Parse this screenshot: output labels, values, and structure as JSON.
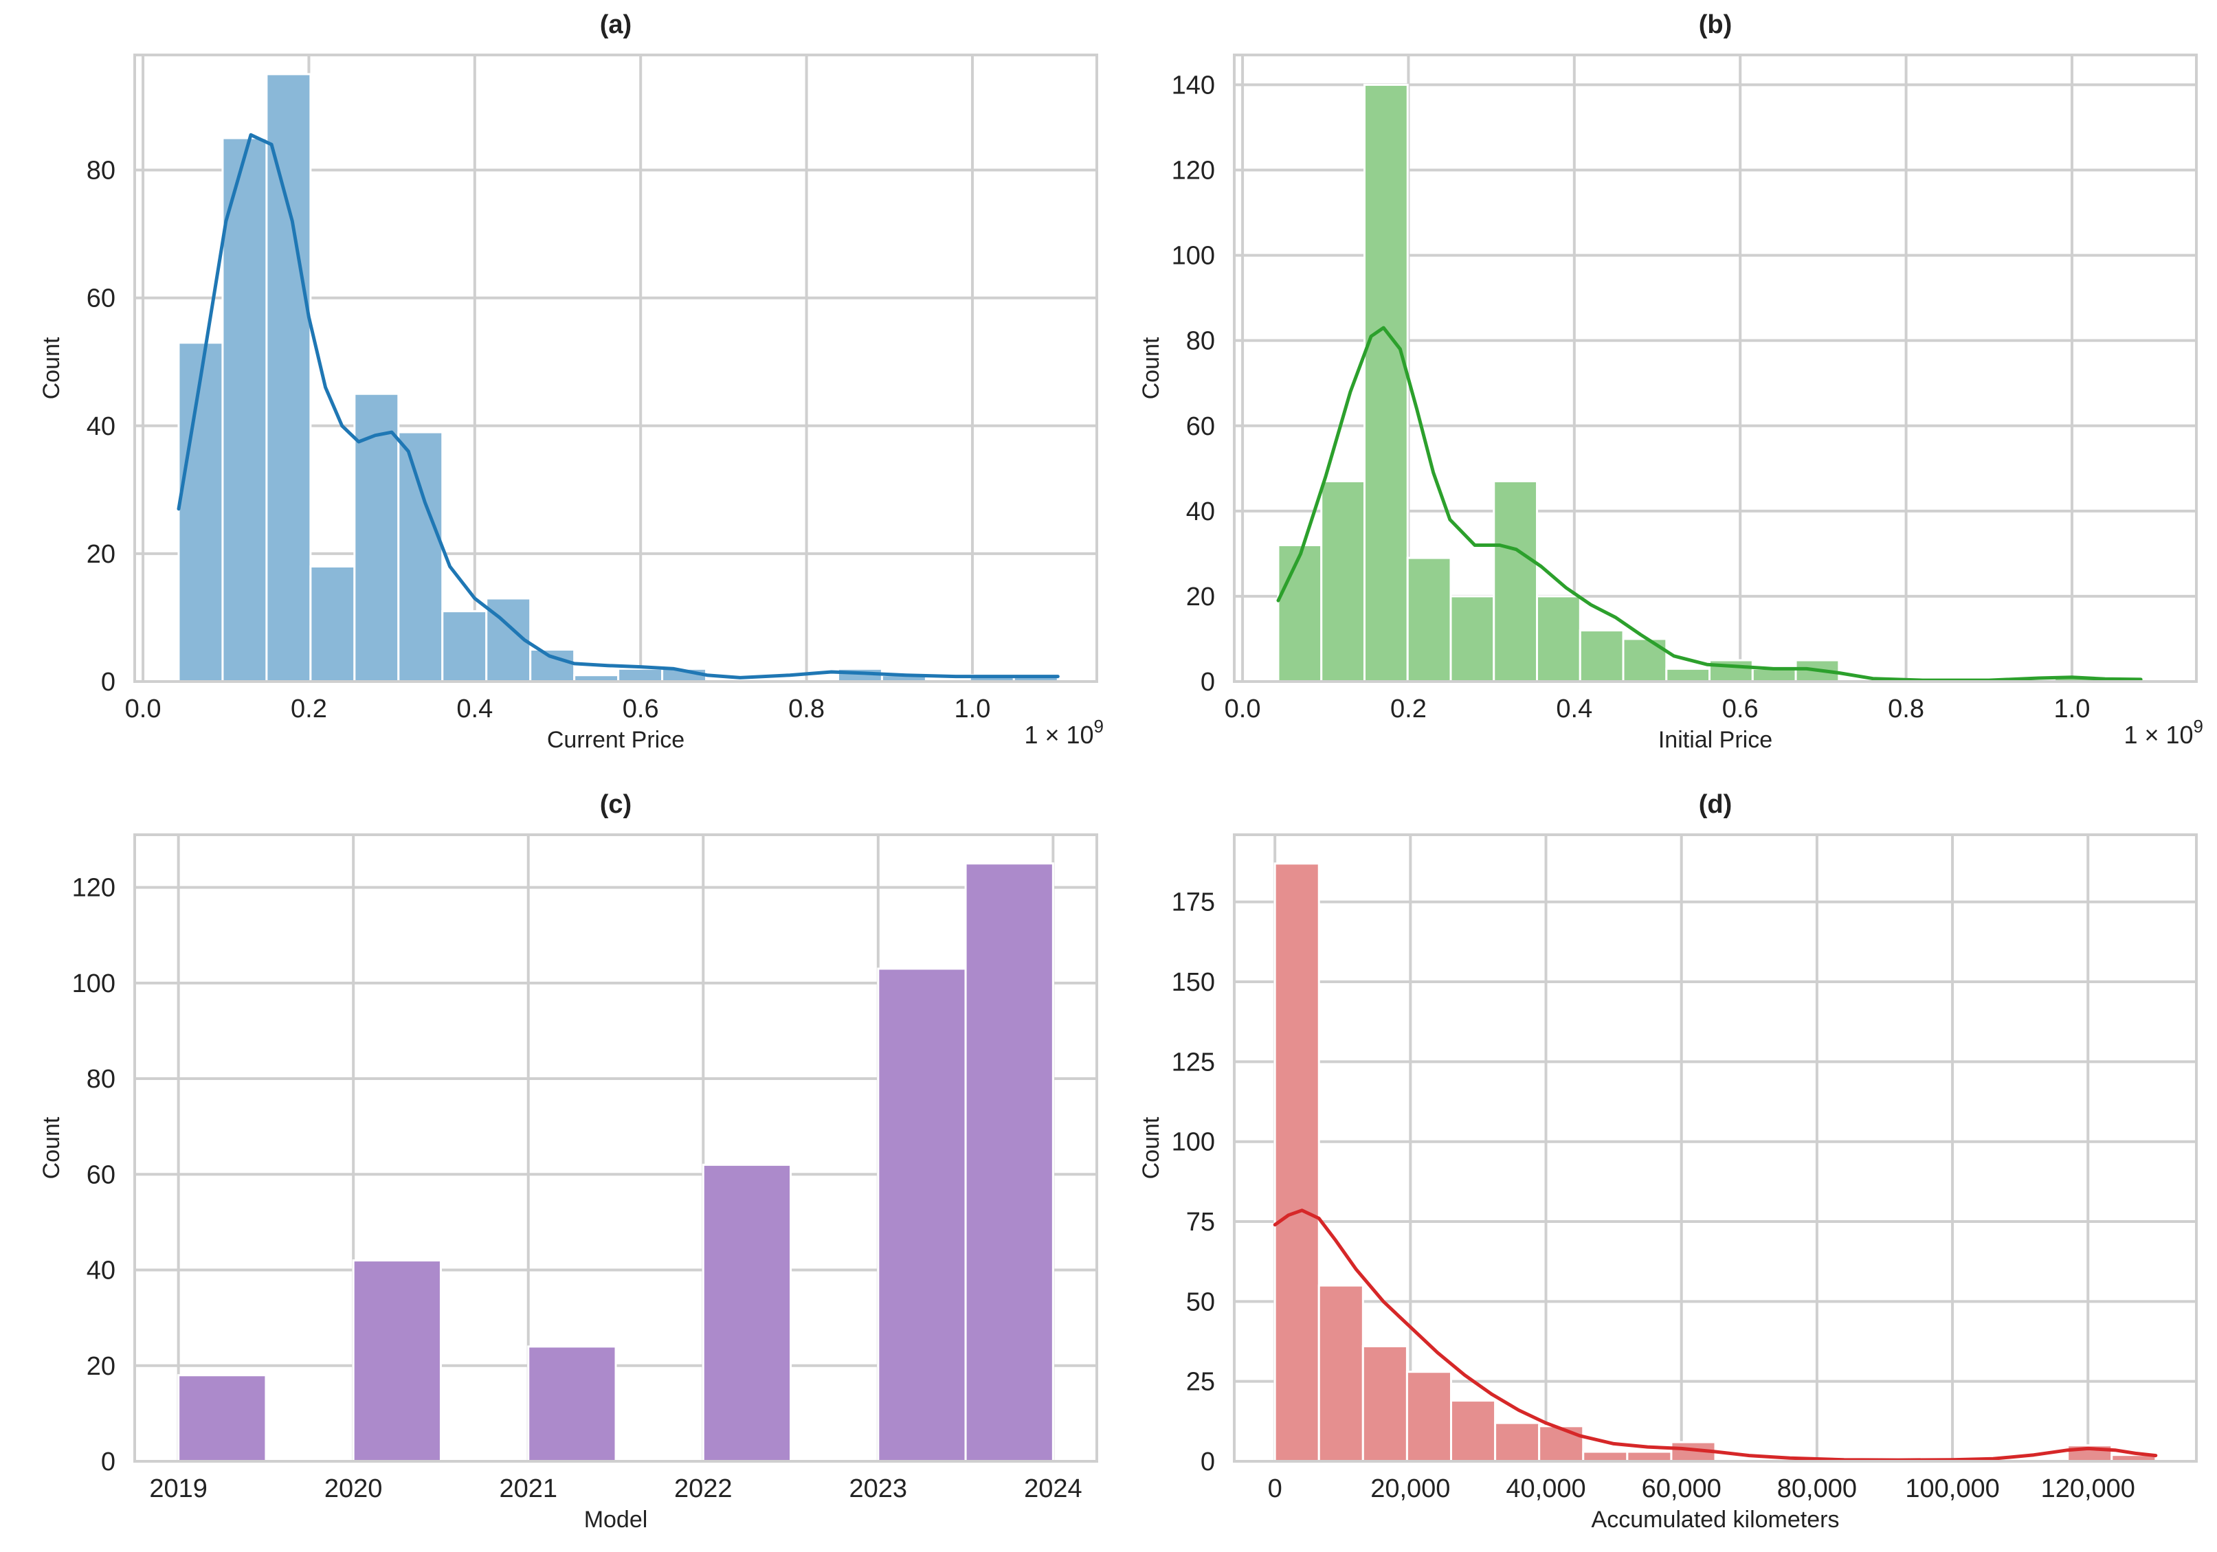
{
  "chart_data": [
    {
      "type": "bar",
      "panel": "a",
      "title": "(a)",
      "xlabel": "Current Price",
      "ylabel": "Count",
      "x_scale_label": "1 × 10",
      "x_scale_exponent": "9",
      "xlim": [
        -0.01,
        1.15
      ],
      "ylim": [
        0,
        98
      ],
      "xticks": [
        0.0,
        0.2,
        0.4,
        0.6,
        0.8,
        1.0
      ],
      "xtick_labels": [
        "0.0",
        "0.2",
        "0.4",
        "0.6",
        "0.8",
        "1.0"
      ],
      "yticks": [
        0,
        20,
        40,
        60,
        80
      ],
      "ytick_labels": [
        "0",
        "20",
        "40",
        "60",
        "80"
      ],
      "bin_edges": [
        0.043,
        0.096,
        0.149,
        0.202,
        0.255,
        0.308,
        0.361,
        0.414,
        0.467,
        0.52,
        0.573,
        0.626,
        0.679,
        0.732,
        0.785,
        0.838,
        0.891,
        0.944,
        0.997,
        1.05,
        1.103
      ],
      "counts": [
        53,
        85,
        95,
        18,
        45,
        39,
        11,
        13,
        5,
        1,
        2,
        2,
        0,
        0,
        0,
        2,
        1,
        0,
        1,
        1
      ],
      "kde": [
        [
          0.043,
          27
        ],
        [
          0.07,
          48
        ],
        [
          0.1,
          72
        ],
        [
          0.13,
          85.5
        ],
        [
          0.155,
          84
        ],
        [
          0.18,
          72
        ],
        [
          0.2,
          57
        ],
        [
          0.22,
          46
        ],
        [
          0.24,
          40
        ],
        [
          0.26,
          37.5
        ],
        [
          0.28,
          38.5
        ],
        [
          0.3,
          39
        ],
        [
          0.32,
          36
        ],
        [
          0.34,
          28
        ],
        [
          0.37,
          18
        ],
        [
          0.4,
          13
        ],
        [
          0.43,
          10
        ],
        [
          0.46,
          6.5
        ],
        [
          0.49,
          4
        ],
        [
          0.52,
          2.8
        ],
        [
          0.56,
          2.5
        ],
        [
          0.6,
          2.3
        ],
        [
          0.64,
          2
        ],
        [
          0.68,
          1
        ],
        [
          0.72,
          0.6
        ],
        [
          0.78,
          1
        ],
        [
          0.83,
          1.5
        ],
        [
          0.87,
          1.3
        ],
        [
          0.92,
          1
        ],
        [
          0.98,
          0.8
        ],
        [
          1.04,
          0.8
        ],
        [
          1.103,
          0.8
        ]
      ],
      "bar_color": "#8ab8d8",
      "line_color": "#1f77b4"
    },
    {
      "type": "bar",
      "panel": "b",
      "title": "(b)",
      "xlabel": "Initial Price",
      "ylabel": "Count",
      "x_scale_label": "1 × 10",
      "x_scale_exponent": "9",
      "xlim": [
        -0.01,
        1.15
      ],
      "ylim": [
        0,
        147
      ],
      "xticks": [
        0.0,
        0.2,
        0.4,
        0.6,
        0.8,
        1.0
      ],
      "xtick_labels": [
        "0.0",
        "0.2",
        "0.4",
        "0.6",
        "0.8",
        "1.0"
      ],
      "yticks": [
        0,
        20,
        40,
        60,
        80,
        100,
        120,
        140
      ],
      "ytick_labels": [
        "0",
        "20",
        "40",
        "60",
        "80",
        "100",
        "120",
        "140"
      ],
      "bin_edges": [
        0.043,
        0.095,
        0.147,
        0.199,
        0.251,
        0.303,
        0.355,
        0.407,
        0.459,
        0.511,
        0.563,
        0.615,
        0.667,
        0.719,
        0.771,
        0.823,
        0.875,
        0.927,
        0.979,
        1.031,
        1.083
      ],
      "counts": [
        32,
        47,
        140,
        29,
        20,
        47,
        20,
        12,
        10,
        3,
        5,
        3,
        5,
        0,
        0,
        0,
        0,
        0,
        1,
        0
      ],
      "kde": [
        [
          0.043,
          19
        ],
        [
          0.07,
          30
        ],
        [
          0.1,
          48
        ],
        [
          0.13,
          68
        ],
        [
          0.155,
          81
        ],
        [
          0.17,
          83
        ],
        [
          0.19,
          78
        ],
        [
          0.21,
          64
        ],
        [
          0.23,
          49
        ],
        [
          0.25,
          38
        ],
        [
          0.28,
          32
        ],
        [
          0.31,
          32
        ],
        [
          0.33,
          31
        ],
        [
          0.36,
          27
        ],
        [
          0.39,
          22
        ],
        [
          0.42,
          18
        ],
        [
          0.45,
          15
        ],
        [
          0.48,
          11
        ],
        [
          0.52,
          6
        ],
        [
          0.56,
          4
        ],
        [
          0.6,
          3.5
        ],
        [
          0.64,
          3
        ],
        [
          0.68,
          3
        ],
        [
          0.72,
          2
        ],
        [
          0.76,
          0.7
        ],
        [
          0.82,
          0.3
        ],
        [
          0.9,
          0.3
        ],
        [
          0.96,
          0.8
        ],
        [
          1.0,
          1
        ],
        [
          1.04,
          0.6
        ],
        [
          1.083,
          0.5
        ]
      ],
      "bar_color": "#94cf8f",
      "line_color": "#2ca02c"
    },
    {
      "type": "bar",
      "panel": "c",
      "title": "(c)",
      "xlabel": "Model",
      "ylabel": "Count",
      "xlim": [
        2018.75,
        2024.25
      ],
      "ylim": [
        0,
        131
      ],
      "xticks": [
        2019,
        2020,
        2021,
        2022,
        2023,
        2024
      ],
      "xtick_labels": [
        "2019",
        "2020",
        "2021",
        "2022",
        "2023",
        "2024"
      ],
      "yticks": [
        0,
        20,
        40,
        60,
        80,
        100,
        120
      ],
      "ytick_labels": [
        "0",
        "20",
        "40",
        "60",
        "80",
        "100",
        "120"
      ],
      "bin_edges": [
        2019.0,
        2019.5,
        2020.0,
        2020.5,
        2021.0,
        2021.5,
        2022.0,
        2022.5,
        2023.0,
        2023.5,
        2024.0
      ],
      "counts": [
        18,
        0,
        42,
        0,
        24,
        0,
        62,
        0,
        103,
        125
      ],
      "bar_color": "#ac8acb"
    },
    {
      "type": "bar",
      "panel": "d",
      "title": "(d)",
      "xlabel": "Accumulated kilometers",
      "ylabel": "Count",
      "xlim": [
        -6000,
        136000
      ],
      "ylim": [
        0,
        196
      ],
      "xticks": [
        0,
        20000,
        40000,
        60000,
        80000,
        100000,
        120000
      ],
      "xtick_labels": [
        "0",
        "20,000",
        "40,000",
        "60,000",
        "80,000",
        "100,000",
        "120,000"
      ],
      "yticks": [
        0,
        25,
        50,
        75,
        100,
        125,
        150,
        175
      ],
      "ytick_labels": [
        "0",
        "25",
        "50",
        "75",
        "100",
        "125",
        "150",
        "175"
      ],
      "bin_edges": [
        0,
        6500,
        13000,
        19500,
        26000,
        32500,
        39000,
        45500,
        52000,
        58500,
        65000,
        71500,
        78000,
        84500,
        91000,
        97500,
        104000,
        110500,
        117000,
        123500,
        130000
      ],
      "counts": [
        187,
        55,
        36,
        28,
        19,
        12,
        11,
        3,
        3,
        6,
        0,
        0,
        0,
        0,
        0,
        0,
        0,
        0,
        5,
        2
      ],
      "kde": [
        [
          0,
          74
        ],
        [
          2000,
          77
        ],
        [
          4000,
          78.5
        ],
        [
          6500,
          76
        ],
        [
          9000,
          69
        ],
        [
          12000,
          60
        ],
        [
          16000,
          50
        ],
        [
          20000,
          42
        ],
        [
          24000,
          34
        ],
        [
          28000,
          27
        ],
        [
          32000,
          21
        ],
        [
          36000,
          16
        ],
        [
          40000,
          12
        ],
        [
          45000,
          8
        ],
        [
          50000,
          5.5
        ],
        [
          55000,
          4.5
        ],
        [
          60000,
          4
        ],
        [
          65000,
          3
        ],
        [
          70000,
          1.8
        ],
        [
          76000,
          1
        ],
        [
          84000,
          0.5
        ],
        [
          92000,
          0.4
        ],
        [
          100000,
          0.5
        ],
        [
          106000,
          0.8
        ],
        [
          112000,
          2
        ],
        [
          117000,
          3.5
        ],
        [
          120000,
          4
        ],
        [
          124000,
          3.5
        ],
        [
          127000,
          2.5
        ],
        [
          130000,
          1.8
        ]
      ],
      "bar_color": "#e58f8f",
      "line_color": "#d62728"
    }
  ]
}
